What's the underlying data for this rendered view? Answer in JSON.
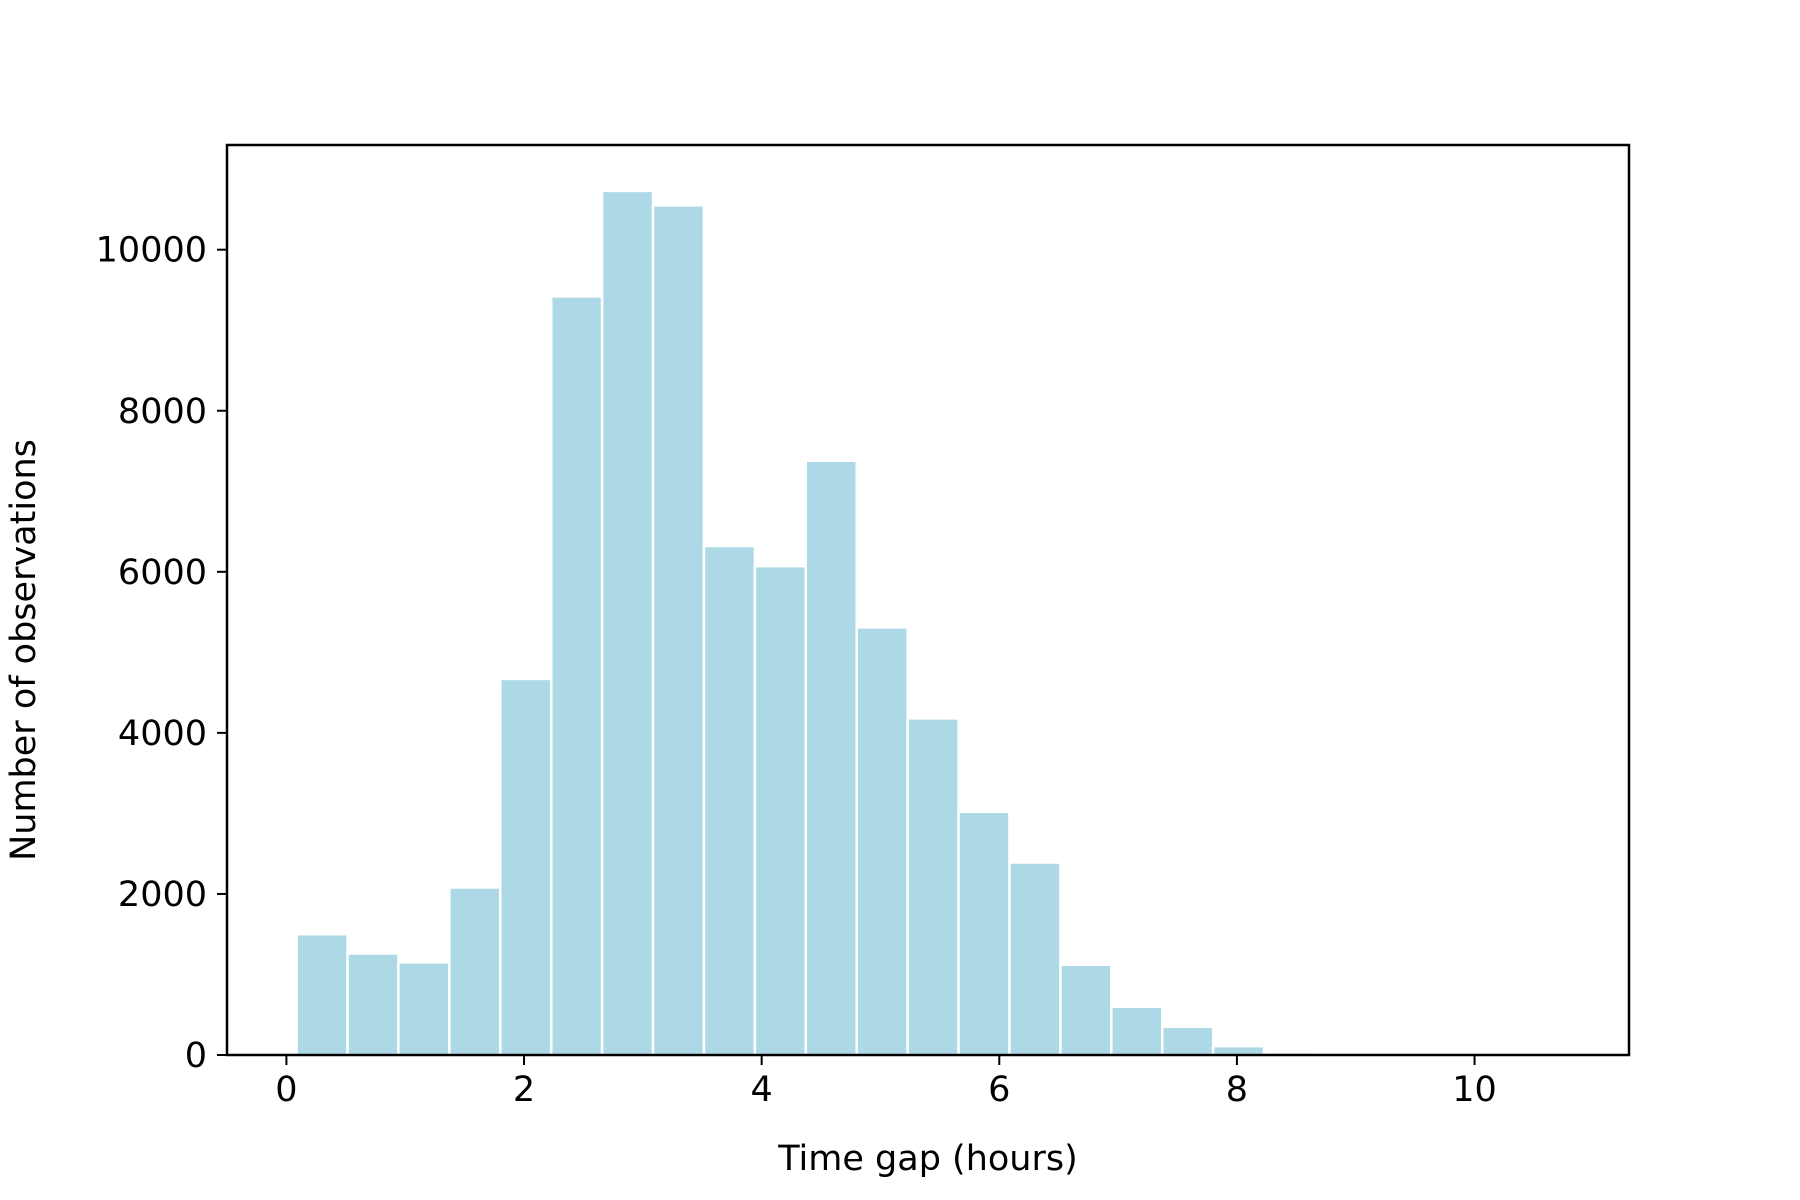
{
  "chart_data": {
    "type": "bar",
    "title": "",
    "xlabel": "Time gap (hours)",
    "ylabel": "Number of observations",
    "xlim": [
      -0.5,
      11.3
    ],
    "ylim": [
      0,
      11300
    ],
    "xticks": [
      0,
      2,
      4,
      6,
      8,
      10
    ],
    "yticks": [
      0,
      2000,
      4000,
      6000,
      8000,
      10000
    ],
    "grid": false,
    "legend": "none",
    "bar_color": "#add8e6",
    "bar_edge_color": "#ffffff",
    "bin_width": 0.4286,
    "bins": [
      {
        "x0": 0.0857,
        "x1": 0.5143,
        "value": 1500
      },
      {
        "x0": 0.5143,
        "x1": 0.9429,
        "value": 1260
      },
      {
        "x0": 0.9429,
        "x1": 1.3714,
        "value": 1150
      },
      {
        "x0": 1.3714,
        "x1": 1.8,
        "value": 2080
      },
      {
        "x0": 1.8,
        "x1": 2.2286,
        "value": 4670
      },
      {
        "x0": 2.2286,
        "x1": 2.6571,
        "value": 9420
      },
      {
        "x0": 2.6571,
        "x1": 3.0857,
        "value": 10730
      },
      {
        "x0": 3.0857,
        "x1": 3.5143,
        "value": 10550
      },
      {
        "x0": 3.5143,
        "x1": 3.9429,
        "value": 6320
      },
      {
        "x0": 3.9429,
        "x1": 4.3714,
        "value": 6070
      },
      {
        "x0": 4.3714,
        "x1": 4.8,
        "value": 7380
      },
      {
        "x0": 4.8,
        "x1": 5.2286,
        "value": 5310
      },
      {
        "x0": 5.2286,
        "x1": 5.6571,
        "value": 4180
      },
      {
        "x0": 5.6571,
        "x1": 6.0857,
        "value": 3020
      },
      {
        "x0": 6.0857,
        "x1": 6.5143,
        "value": 2390
      },
      {
        "x0": 6.5143,
        "x1": 6.9429,
        "value": 1120
      },
      {
        "x0": 6.9429,
        "x1": 7.3714,
        "value": 600
      },
      {
        "x0": 7.3714,
        "x1": 7.8,
        "value": 350
      },
      {
        "x0": 7.8,
        "x1": 8.2286,
        "value": 110
      },
      {
        "x0": 8.2286,
        "x1": 8.6571,
        "value": 35
      },
      {
        "x0": 8.6571,
        "x1": 9.0857,
        "value": 8
      },
      {
        "x0": 9.0857,
        "x1": 9.5143,
        "value": 4
      },
      {
        "x0": 9.5143,
        "x1": 9.9429,
        "value": 3
      },
      {
        "x0": 9.9429,
        "x1": 10.3714,
        "value": 2
      },
      {
        "x0": 10.3714,
        "x1": 10.8,
        "value": 1
      }
    ]
  }
}
